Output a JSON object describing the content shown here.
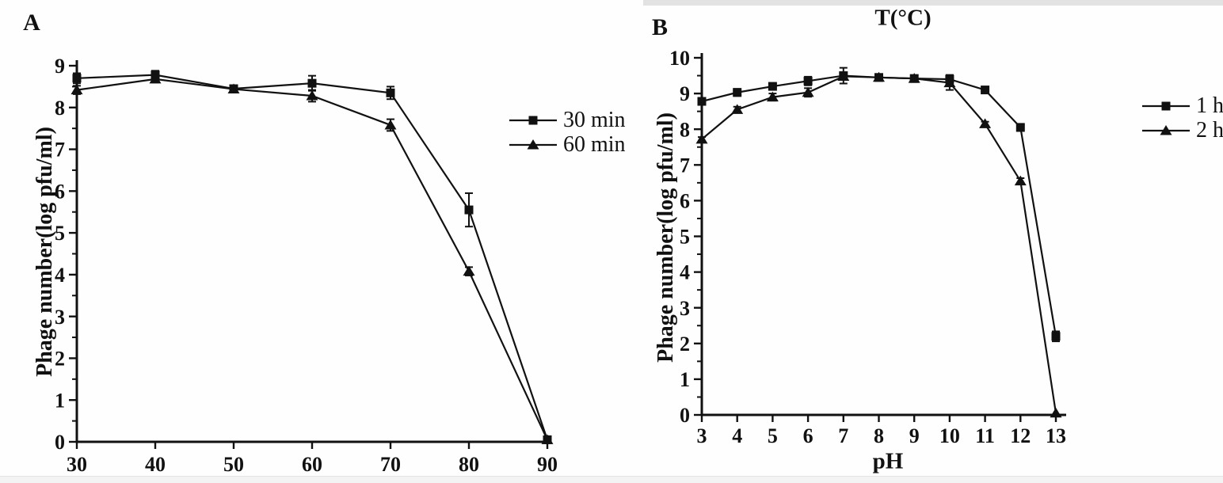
{
  "figure": {
    "background": "#fefefe",
    "line_color": "#111111"
  },
  "chart_data": [
    {
      "type": "line",
      "panel_label": "A",
      "title": "",
      "xlabel": "",
      "ylabel": "Phage number(log pfu/ml)",
      "x": [
        30,
        40,
        50,
        60,
        70,
        80,
        90
      ],
      "xlim": [
        30,
        90
      ],
      "ylim": [
        0,
        9
      ],
      "yticks": [
        0,
        1,
        2,
        3,
        4,
        5,
        6,
        7,
        8,
        9
      ],
      "minor_y_step": 0.5,
      "grid": "off",
      "legend_position": "right-of-plot",
      "error_bars": true,
      "series": [
        {
          "name": "30 min",
          "marker": "square",
          "values": [
            8.7,
            8.78,
            8.45,
            8.58,
            8.35,
            5.55,
            0.05
          ],
          "errors": [
            0.12,
            0.1,
            0.06,
            0.18,
            0.15,
            0.4,
            0
          ]
        },
        {
          "name": "60 min",
          "marker": "triangle",
          "values": [
            8.42,
            8.68,
            8.44,
            8.28,
            7.58,
            4.08,
            0.05
          ],
          "errors": [
            0.1,
            0.08,
            0.06,
            0.14,
            0.14,
            0.1,
            0
          ]
        }
      ]
    },
    {
      "type": "line",
      "panel_label": "B",
      "title": "T(°C)",
      "xlabel": "pH",
      "ylabel": "Phage number(log pfu/ml)",
      "x": [
        3,
        4,
        5,
        6,
        7,
        8,
        9,
        10,
        11,
        12,
        13
      ],
      "xlim": [
        3,
        13
      ],
      "ylim": [
        0,
        10
      ],
      "yticks": [
        0,
        1,
        2,
        3,
        4,
        5,
        6,
        7,
        8,
        9,
        10
      ],
      "minor_y_step": 0.5,
      "grid": "off",
      "legend_position": "right-of-plot",
      "error_bars": true,
      "series": [
        {
          "name": "1 h",
          "marker": "square",
          "values": [
            8.78,
            9.03,
            9.2,
            9.35,
            9.5,
            9.45,
            9.42,
            9.4,
            9.1,
            8.05,
            2.2
          ],
          "errors": [
            0.08,
            0.1,
            0.08,
            0.12,
            0.22,
            0.06,
            0.06,
            0.12,
            0.05,
            0.1,
            0.14
          ]
        },
        {
          "name": "2 h",
          "marker": "triangle",
          "values": [
            7.72,
            8.55,
            8.9,
            9.03,
            9.48,
            9.45,
            9.42,
            9.3,
            8.15,
            6.55,
            0.05
          ],
          "errors": [
            0.06,
            0.08,
            0.1,
            0.12,
            0.1,
            0.05,
            0.05,
            0.2,
            0.06,
            0.08,
            0
          ]
        }
      ]
    }
  ]
}
